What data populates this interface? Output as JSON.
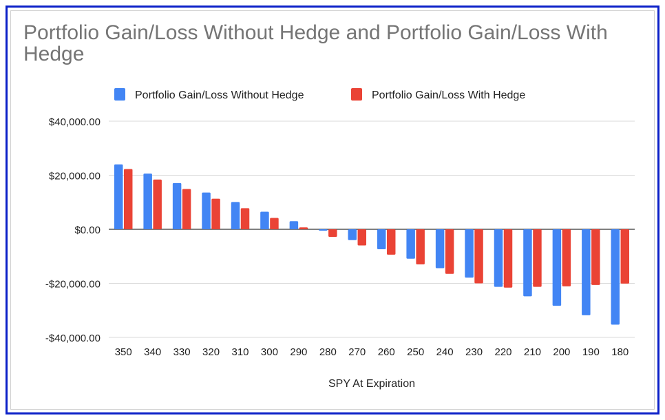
{
  "chart_data": {
    "type": "bar",
    "title": "Portfolio Gain/Loss Without Hedge and Portfolio Gain/Loss With Hedge",
    "xlabel": "SPY At Expiration",
    "ylabel": "",
    "categories": [
      "350",
      "340",
      "330",
      "320",
      "310",
      "300",
      "290",
      "280",
      "270",
      "260",
      "250",
      "240",
      "230",
      "220",
      "210",
      "200",
      "190",
      "180"
    ],
    "series": [
      {
        "name": "Portfolio Gain/Loss Without Hedge",
        "color": "#4285f4",
        "values": [
          24000,
          20600,
          17100,
          13600,
          10100,
          6500,
          3000,
          -500,
          -4000,
          -7400,
          -10900,
          -14400,
          -17900,
          -21300,
          -24800,
          -28300,
          -31800,
          -35300
        ]
      },
      {
        "name": "Portfolio Gain/Loss With Hedge",
        "color": "#ea4335",
        "values": [
          22300,
          18400,
          14900,
          11300,
          7800,
          4200,
          700,
          -2800,
          -6000,
          -9400,
          -13000,
          -16500,
          -20000,
          -21600,
          -21300,
          -21100,
          -20600,
          -20100
        ]
      }
    ],
    "ylim": [
      -40000,
      40000
    ],
    "yticks": [
      40000,
      20000,
      0,
      -20000,
      -40000
    ],
    "ytick_labels": [
      "$40,000.00",
      "$20,000.00",
      "$0.00",
      "-$20,000.00",
      "-$40,000.00"
    ],
    "grid": true,
    "legend": "top"
  }
}
